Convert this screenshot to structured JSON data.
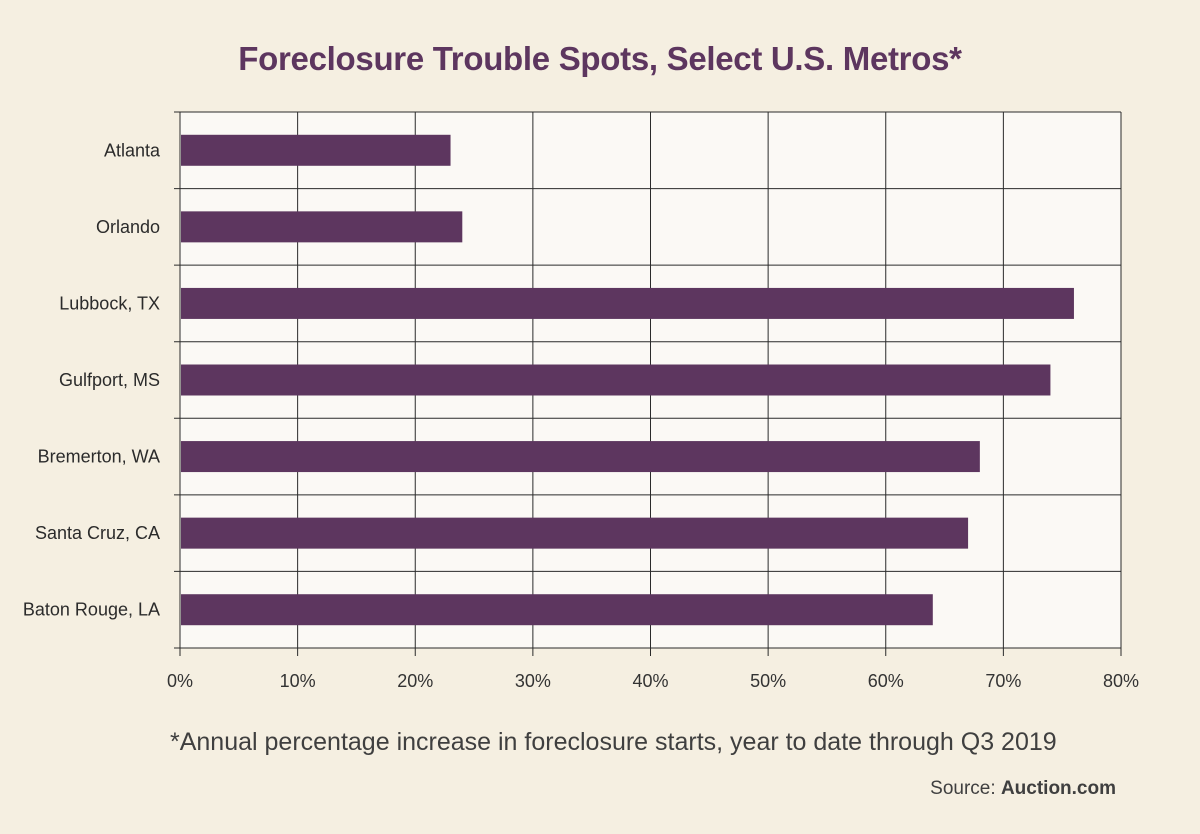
{
  "chart_data": {
    "type": "bar",
    "orientation": "horizontal",
    "title": "Foreclosure Trouble Spots, Select U.S. Metros*",
    "categories": [
      "Atlanta",
      "Orlando",
      "Lubbock, TX",
      "Gulfport, MS",
      "Bremerton, WA",
      "Santa Cruz, CA",
      "Baton Rouge, LA"
    ],
    "values": [
      23,
      24,
      76,
      74,
      68,
      67,
      64
    ],
    "x_ticks": [
      "0%",
      "10%",
      "20%",
      "30%",
      "40%",
      "50%",
      "60%",
      "70%",
      "80%"
    ],
    "xlim": [
      0,
      80
    ],
    "grid": true,
    "bar_color": "#5d365f",
    "footnote": "*Annual percentage increase in foreclosure starts, year to date through Q3 2019",
    "source_label": "Source: ",
    "source_name": "Auction.com"
  }
}
